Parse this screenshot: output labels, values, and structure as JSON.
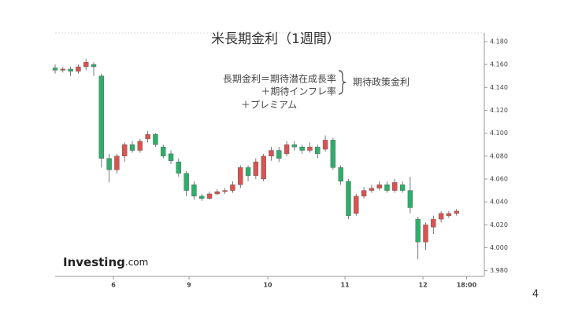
{
  "chart_data": {
    "type": "candlestick",
    "title": "米長期金利（1週間）",
    "annotations": [
      "長期金利＝期待潜在成長率",
      "＋期待インフレ率",
      "＋プレミアム",
      "期待政策金利"
    ],
    "logo": {
      "brand": "Investing",
      "suffix": ".com"
    },
    "page_number": "4",
    "up_color": "#d9534f",
    "down_color": "#2eae6a",
    "x": [
      0,
      1,
      2,
      3,
      4,
      5,
      6,
      7,
      8,
      9,
      10,
      11,
      12,
      13,
      14,
      15,
      16,
      17,
      18,
      19,
      20,
      21,
      22,
      23,
      24,
      25,
      26,
      27,
      28,
      29,
      30,
      31,
      32,
      33,
      34,
      35,
      36,
      37,
      38,
      39,
      40,
      41,
      42,
      43,
      44,
      45,
      46,
      47,
      48,
      49,
      50,
      51,
      52
    ],
    "open": [
      4.157,
      4.155,
      4.156,
      4.154,
      4.158,
      4.16,
      4.15,
      4.078,
      4.068,
      4.08,
      4.09,
      4.085,
      4.095,
      4.099,
      4.088,
      4.082,
      4.075,
      4.065,
      4.055,
      4.045,
      4.043,
      4.047,
      4.049,
      4.05,
      4.055,
      4.07,
      4.063,
      4.06,
      4.08,
      4.085,
      4.082,
      4.09,
      4.088,
      4.085,
      4.088,
      4.086,
      4.094,
      4.07,
      4.058,
      4.03,
      4.045,
      4.05,
      4.052,
      4.055,
      4.05,
      4.055,
      4.05,
      4.025,
      4.005,
      4.018,
      4.025,
      4.028,
      4.03
    ],
    "high": [
      4.16,
      4.158,
      4.158,
      4.16,
      4.165,
      4.162,
      4.152,
      4.082,
      4.082,
      4.092,
      4.093,
      4.095,
      4.102,
      4.1,
      4.09,
      4.085,
      4.078,
      4.067,
      4.058,
      4.047,
      4.049,
      4.051,
      4.052,
      4.058,
      4.072,
      4.072,
      4.078,
      4.082,
      4.088,
      4.088,
      4.093,
      4.093,
      4.09,
      4.092,
      4.09,
      4.098,
      4.096,
      4.072,
      4.06,
      4.047,
      4.053,
      4.055,
      4.058,
      4.058,
      4.06,
      4.058,
      4.062,
      4.027,
      4.022,
      4.028,
      4.032,
      4.032,
      4.034
    ],
    "low": [
      4.152,
      4.153,
      4.15,
      4.152,
      4.155,
      4.15,
      4.07,
      4.057,
      4.065,
      4.075,
      4.083,
      4.083,
      4.092,
      4.088,
      4.078,
      4.073,
      4.062,
      4.045,
      4.042,
      4.041,
      4.042,
      4.046,
      4.047,
      4.048,
      4.052,
      4.058,
      4.06,
      4.058,
      4.076,
      4.075,
      4.08,
      4.085,
      4.082,
      4.083,
      4.078,
      4.084,
      4.068,
      4.055,
      4.025,
      4.028,
      4.043,
      4.048,
      4.05,
      4.048,
      4.048,
      4.048,
      4.03,
      3.99,
      3.998,
      4.012,
      4.022,
      4.026,
      4.028
    ],
    "close": [
      4.155,
      4.156,
      4.154,
      4.158,
      4.162,
      4.158,
      4.078,
      4.068,
      4.08,
      4.09,
      4.085,
      4.093,
      4.099,
      4.09,
      4.08,
      4.076,
      4.065,
      4.05,
      4.045,
      4.043,
      4.047,
      4.049,
      4.05,
      4.055,
      4.07,
      4.063,
      4.075,
      4.08,
      4.085,
      4.078,
      4.09,
      4.088,
      4.085,
      4.088,
      4.082,
      4.094,
      4.07,
      4.058,
      4.028,
      4.045,
      4.05,
      4.052,
      4.055,
      4.05,
      4.057,
      4.05,
      4.035,
      4.005,
      4.02,
      4.025,
      4.03,
      4.03,
      4.032
    ],
    "xlim": [
      0,
      55.6
    ],
    "xticks": [
      {
        "value": 7.55,
        "label": "6"
      },
      {
        "value": 17.35,
        "label": "9"
      },
      {
        "value": 27.55,
        "label": "10"
      },
      {
        "value": 37.55,
        "label": "11"
      },
      {
        "value": 47.65,
        "label": "12"
      },
      {
        "value": 53.3,
        "label": "18:00"
      }
    ],
    "ylim": [
      3.975,
      4.1875
    ],
    "yticks": [
      {
        "value": 3.98,
        "label": "3.980"
      },
      {
        "value": 4.0,
        "label": "4.000"
      },
      {
        "value": 4.02,
        "label": "4.020"
      },
      {
        "value": 4.04,
        "label": "4.040"
      },
      {
        "value": 4.06,
        "label": "4.060"
      },
      {
        "value": 4.08,
        "label": "4.080"
      },
      {
        "value": 4.1,
        "label": "4.100"
      },
      {
        "value": 4.12,
        "label": "4.120"
      },
      {
        "value": 4.14,
        "label": "4.140"
      },
      {
        "value": 4.16,
        "label": "4.160"
      },
      {
        "value": 4.18,
        "label": "4.180"
      }
    ]
  }
}
